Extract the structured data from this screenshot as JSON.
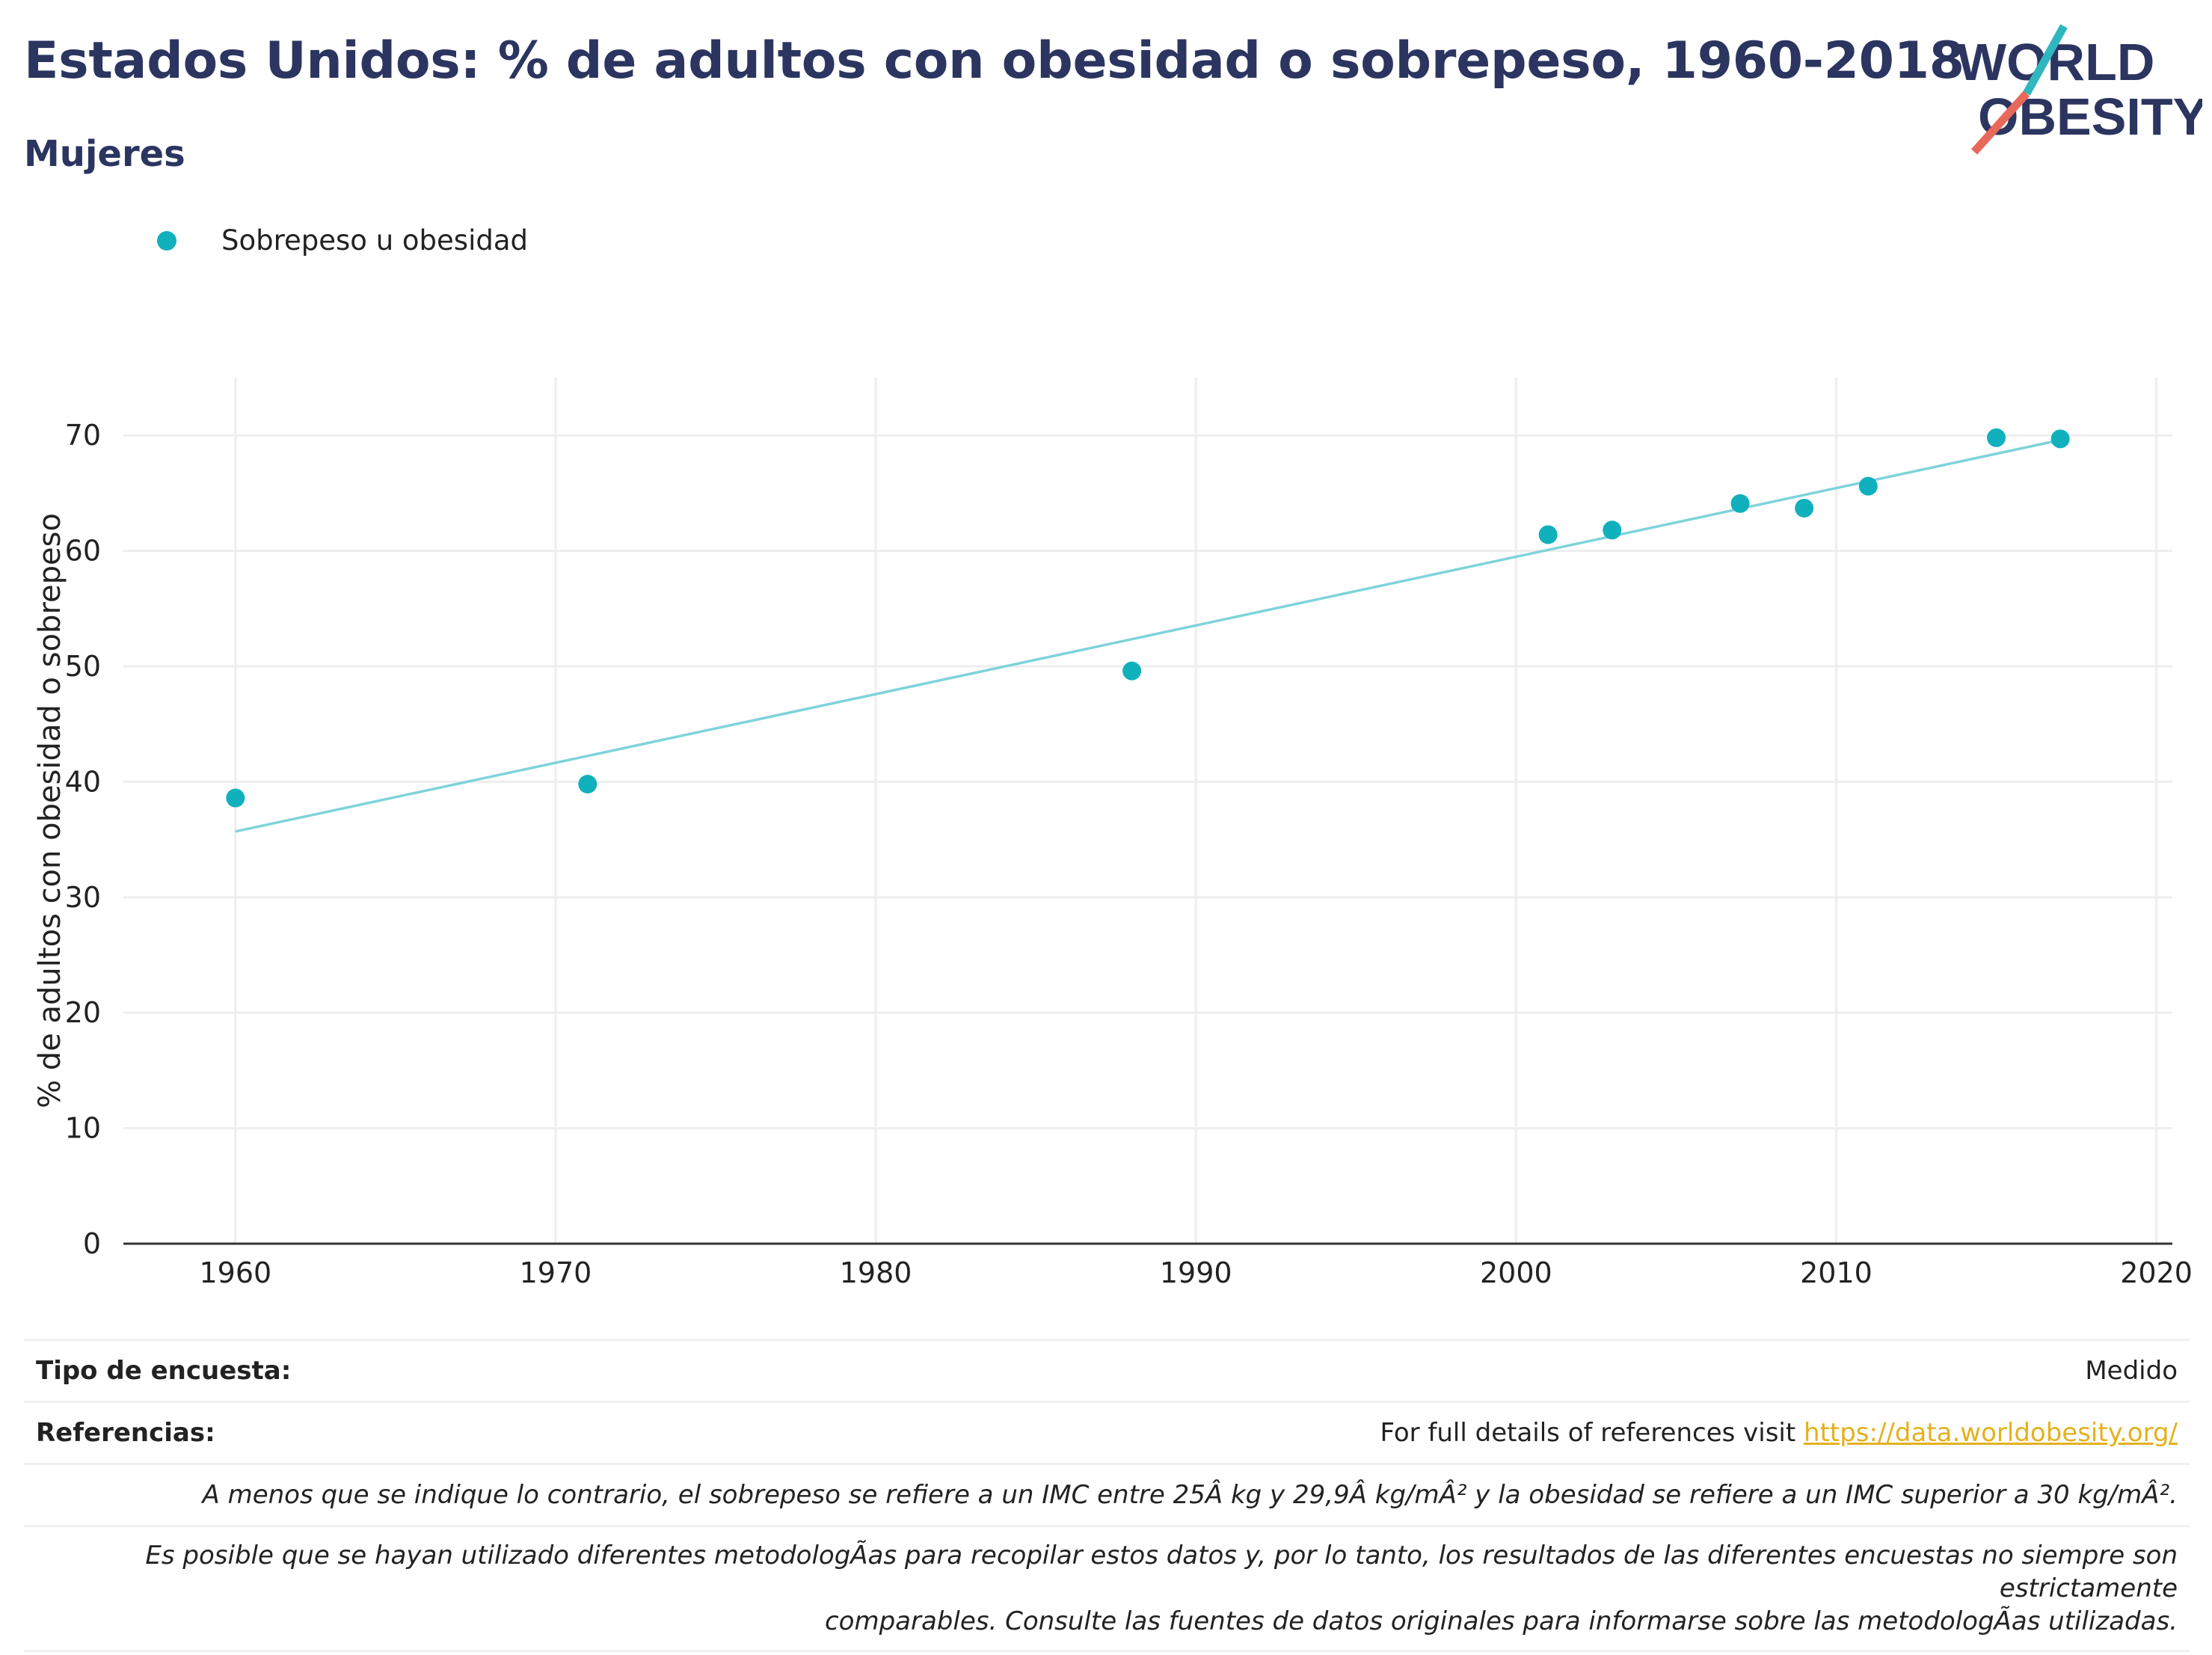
{
  "header": {
    "title": "Estados Unidos: % de adultos con obesidad o sobrepeso, 1960-2018",
    "subtitle": "Mujeres"
  },
  "logo": {
    "line1": "WORLD",
    "line2": "OBESITY",
    "colors": {
      "text": "#2b3560",
      "teal": "#2fb6bf",
      "red": "#e8685a"
    }
  },
  "legend": {
    "label": "Sobrepeso u obesidad"
  },
  "colors": {
    "point": "#11b0bd",
    "trend": "#7fd3da",
    "grid": "#eeeeee",
    "axis": "#333333",
    "title": "#2b3560",
    "link": "#e3b11d"
  },
  "chart_data": {
    "type": "scatter",
    "ylabel": "% de adultos con obesidad o sobrepeso",
    "xlabel": "",
    "xlim": [
      1956.5,
      2020.5
    ],
    "ylim": [
      0,
      75
    ],
    "xticks": [
      1960,
      1970,
      1980,
      1990,
      2000,
      2010,
      2020
    ],
    "yticks": [
      0,
      10,
      20,
      30,
      40,
      50,
      60,
      70
    ],
    "grid": true,
    "legend_position": "top-left",
    "series": [
      {
        "name": "Sobrepeso u obesidad",
        "points": [
          {
            "x": 1960,
            "y": 38.6
          },
          {
            "x": 1971,
            "y": 39.8
          },
          {
            "x": 1988,
            "y": 49.6
          },
          {
            "x": 2001,
            "y": 61.4
          },
          {
            "x": 2003,
            "y": 61.8
          },
          {
            "x": 2007,
            "y": 64.1
          },
          {
            "x": 2009,
            "y": 63.7
          },
          {
            "x": 2011,
            "y": 65.6
          },
          {
            "x": 2015,
            "y": 69.8
          },
          {
            "x": 2017,
            "y": 69.7
          }
        ]
      }
    ],
    "trendline": {
      "x": [
        1960,
        2017
      ],
      "y": [
        35.7,
        69.6
      ]
    }
  },
  "notes": {
    "survey_label": "Tipo de encuesta:",
    "survey_value": "Medido",
    "refs_label": "Referencias:",
    "refs_text": "For full details of references visit ",
    "refs_link": "https://data.worldobesity.org/",
    "definition": "A menos que se indique lo contrario, el sobrepeso se refiere a un IMC entre 25Â kg y 29,9Â kg/mÂ² y la obesidad se refiere a un IMC superior a 30 kg/mÂ².",
    "methodology_line1": "Es posible que se hayan utilizado diferentes metodologÃas para recopilar estos datos y, por lo tanto, los resultados de las diferentes encuestas no siempre son estrictamente",
    "methodology_line2": "comparables. Consulte las fuentes de datos originales para informarse sobre las metodologÃas utilizadas."
  }
}
